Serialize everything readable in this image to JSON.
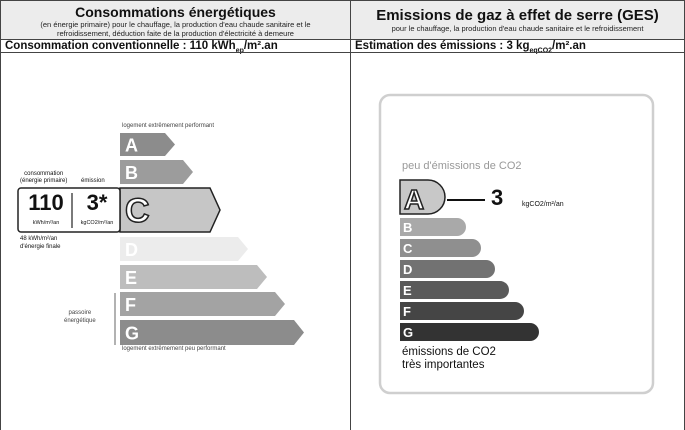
{
  "energy": {
    "title": "Consommations énergétiques",
    "subtitle_1": "(en énergie primaire) pour le chauffage, la production d'eau chaude sanitaire et le",
    "subtitle_2": "refroidissement, déduction faite de la production d'électricité à demeure",
    "summary_prefix": "Consommation conventionnelle : 110 kWh",
    "summary_sub": "ep",
    "summary_suffix": "/m².an",
    "top_label": "logement extrêmement performant",
    "bottom_label": "logement extrêmement peu performant",
    "consumption_label_1": "consommation",
    "consumption_label_2": "(énergie primaire)",
    "emission_label": "émission",
    "consumption_value": "110",
    "consumption_unit": "kWh/m²/an",
    "emission_value": "3*",
    "emission_unit": "kgCO2/m²/an",
    "final_energy_1": "48 kWh/m²/an",
    "final_energy_2": "d'énergie finale",
    "passoire_1": "passoire",
    "passoire_2": "énergétique",
    "current_class": "C",
    "classes": [
      {
        "letter": "A",
        "color": "#8c8c8c"
      },
      {
        "letter": "B",
        "color": "#9c9c9c"
      },
      {
        "letter": "C",
        "color": "#c6c6c6"
      },
      {
        "letter": "D",
        "color": "#ececec"
      },
      {
        "letter": "E",
        "color": "#bdbdbd"
      },
      {
        "letter": "F",
        "color": "#a3a3a3"
      },
      {
        "letter": "G",
        "color": "#8c8c8c"
      }
    ]
  },
  "ges": {
    "title": "Emissions de gaz à effet de serre (GES)",
    "subtitle": "pour le chauffage, la production d'eau chaude sanitaire et le refroidissement",
    "summary_prefix": "Estimation des émissions : 3 kg",
    "summary_sub": "eqCO2",
    "summary_suffix": "/m².an",
    "top_label": "peu d'émissions de CO2",
    "bottom_label_1": "émissions de CO2",
    "bottom_label_2": "très importantes",
    "value": "3",
    "unit": "kgCO2/m²/an",
    "current_class": "A",
    "classes": [
      {
        "letter": "A",
        "color": "#c8c8c8"
      },
      {
        "letter": "B",
        "color": "#a9a9a9"
      },
      {
        "letter": "C",
        "color": "#8f8f8f"
      },
      {
        "letter": "D",
        "color": "#727272"
      },
      {
        "letter": "E",
        "color": "#5a5a5a"
      },
      {
        "letter": "F",
        "color": "#454545"
      },
      {
        "letter": "G",
        "color": "#333333"
      }
    ]
  }
}
